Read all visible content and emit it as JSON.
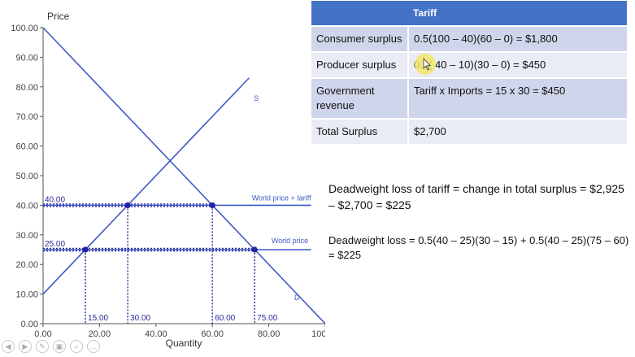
{
  "chart_data": {
    "type": "line",
    "title": "Price",
    "xlabel": "Quantity",
    "ylabel": "Price",
    "xlim": [
      0,
      100
    ],
    "ylim": [
      0,
      100
    ],
    "x_ticks": [
      "0.00",
      "20.00",
      "40.00",
      "60.00",
      "80.00",
      "100.00"
    ],
    "y_ticks": [
      "0.00",
      "10.00",
      "20.00",
      "30.00",
      "40.00",
      "50.00",
      "60.00",
      "70.00",
      "80.00",
      "90.00",
      "100.00"
    ],
    "series": [
      {
        "name": "D",
        "x": [
          0,
          100
        ],
        "y": [
          100,
          0
        ]
      },
      {
        "name": "S",
        "x": [
          0,
          73
        ],
        "y": [
          10,
          83
        ]
      },
      {
        "name": "World price + tariff",
        "x": [
          0,
          95
        ],
        "y": [
          40,
          40
        ]
      },
      {
        "name": "World price",
        "x": [
          0,
          95
        ],
        "y": [
          25,
          25
        ]
      }
    ],
    "points": [
      {
        "x": 15,
        "y": 25
      },
      {
        "x": 30,
        "y": 40
      },
      {
        "x": 60,
        "y": 40
      },
      {
        "x": 75,
        "y": 25
      }
    ],
    "reference_labels": {
      "price_tariff": "40.00",
      "price_world": "25.00",
      "q_15": "15.00",
      "q_30": "30.00",
      "q_60": "60.00",
      "q_75": "75.00"
    }
  },
  "table": {
    "header": [
      "",
      "Tariff"
    ],
    "rows": [
      [
        "Consumer surplus",
        "0.5(100 – 40)(60 – 0) = $1,800"
      ],
      [
        "Producer surplus",
        "0.5( 40 – 10)(30 – 0) = $450"
      ],
      [
        "Government revenue",
        "Tariff x Imports = 15 x 30 = $450"
      ],
      [
        "Total Surplus",
        "$2,700"
      ]
    ]
  },
  "notes": {
    "dwl_total": "Deadweight loss of tariff = change in total surplus = $2,925 – $2,700 = $225",
    "dwl_formula": "Deadweight loss = 0.5(40 – 25)(30 – 15) + 0.5(40 – 25)(75 – 60) = $225"
  },
  "colors": {
    "line": "#3f59c4",
    "dotted": "#2a2a9a",
    "point": "#2323a8",
    "header": "#4472c4"
  }
}
